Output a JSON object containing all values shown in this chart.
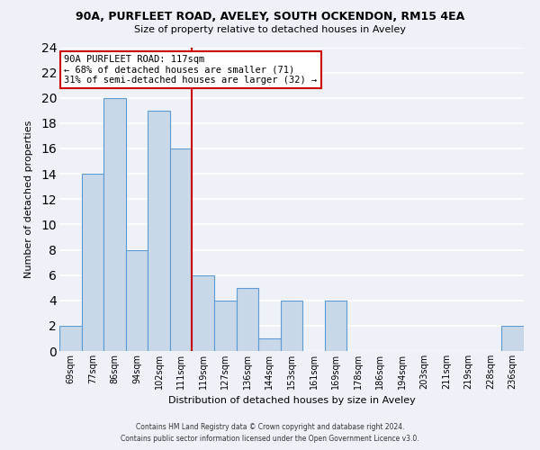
{
  "title": "90A, PURFLEET ROAD, AVELEY, SOUTH OCKENDON, RM15 4EA",
  "subtitle": "Size of property relative to detached houses in Aveley",
  "xlabel": "Distribution of detached houses by size in Aveley",
  "ylabel": "Number of detached properties",
  "bar_labels": [
    "69sqm",
    "77sqm",
    "86sqm",
    "94sqm",
    "102sqm",
    "111sqm",
    "119sqm",
    "127sqm",
    "136sqm",
    "144sqm",
    "153sqm",
    "161sqm",
    "169sqm",
    "178sqm",
    "186sqm",
    "194sqm",
    "203sqm",
    "211sqm",
    "219sqm",
    "228sqm",
    "236sqm"
  ],
  "bar_values": [
    2,
    14,
    20,
    8,
    19,
    16,
    6,
    4,
    5,
    1,
    4,
    0,
    4,
    0,
    0,
    0,
    0,
    0,
    0,
    0,
    2
  ],
  "bar_color": "#c8d8e8",
  "bar_edge_color": "#5b9bd5",
  "ylim": [
    0,
    24
  ],
  "yticks": [
    0,
    2,
    4,
    6,
    8,
    10,
    12,
    14,
    16,
    18,
    20,
    22,
    24
  ],
  "vline_x_index": 6,
  "vline_color": "#cc0000",
  "annotation_title": "90A PURFLEET ROAD: 117sqm",
  "annotation_line1": "← 68% of detached houses are smaller (71)",
  "annotation_line2": "31% of semi-detached houses are larger (32) →",
  "annotation_box_color": "#ffffff",
  "annotation_box_edge_color": "#cc0000",
  "footnote1": "Contains HM Land Registry data © Crown copyright and database right 2024.",
  "footnote2": "Contains public sector information licensed under the Open Government Licence v3.0.",
  "background_color": "#eef2f8",
  "grid_color": "#ffffff"
}
